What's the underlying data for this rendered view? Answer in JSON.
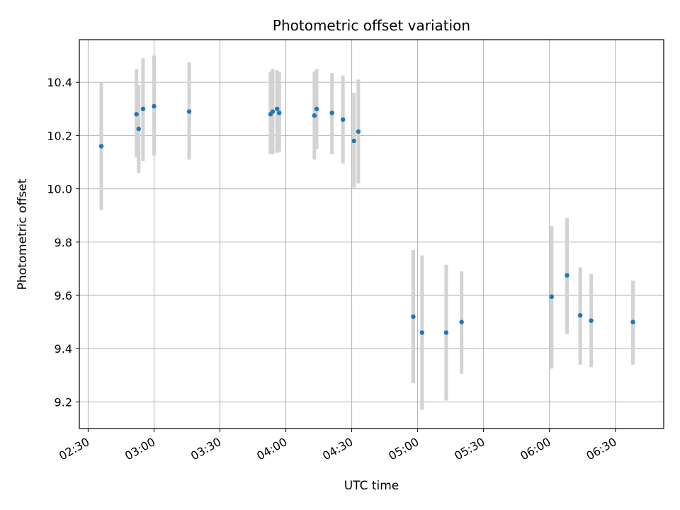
{
  "chart_data": {
    "type": "scatter",
    "title": "Photometric offset variation",
    "xlabel": "UTC time",
    "ylabel": "Photometric offset",
    "x_ticks": [
      "02:30",
      "03:00",
      "03:30",
      "04:00",
      "04:30",
      "05:00",
      "05:30",
      "06:00",
      "06:30"
    ],
    "y_ticks": [
      "9.2",
      "9.4",
      "9.6",
      "9.8",
      "10.0",
      "10.2",
      "10.4"
    ],
    "xlim": [
      "02:26",
      "06:52"
    ],
    "ylim": [
      9.1,
      10.56
    ],
    "grid": true,
    "colors": {
      "point": "#1f77b4",
      "errorbar": "#d3d3d3",
      "grid": "#b0b0b0"
    },
    "points": [
      {
        "time": "02:36",
        "value": 10.16,
        "err_low": 9.92,
        "err_high": 10.4
      },
      {
        "time": "02:52",
        "value": 10.28,
        "err_low": 10.12,
        "err_high": 10.45
      },
      {
        "time": "02:53",
        "value": 10.225,
        "err_low": 10.06,
        "err_high": 10.39
      },
      {
        "time": "02:55",
        "value": 10.3,
        "err_low": 10.105,
        "err_high": 10.49
      },
      {
        "time": "03:00",
        "value": 10.31,
        "err_low": 10.125,
        "err_high": 10.5
      },
      {
        "time": "03:16",
        "value": 10.29,
        "err_low": 10.11,
        "err_high": 10.475
      },
      {
        "time": "03:53",
        "value": 10.28,
        "err_low": 10.13,
        "err_high": 10.44
      },
      {
        "time": "03:54",
        "value": 10.29,
        "err_low": 10.13,
        "err_high": 10.45
      },
      {
        "time": "03:56",
        "value": 10.3,
        "err_low": 10.135,
        "err_high": 10.445
      },
      {
        "time": "03:57",
        "value": 10.285,
        "err_low": 10.14,
        "err_high": 10.44
      },
      {
        "time": "04:13",
        "value": 10.275,
        "err_low": 10.11,
        "err_high": 10.44
      },
      {
        "time": "04:14",
        "value": 10.3,
        "err_low": 10.15,
        "err_high": 10.45
      },
      {
        "time": "04:21",
        "value": 10.285,
        "err_low": 10.13,
        "err_high": 10.435
      },
      {
        "time": "04:26",
        "value": 10.26,
        "err_low": 10.095,
        "err_high": 10.425
      },
      {
        "time": "04:31",
        "value": 10.18,
        "err_low": 10.005,
        "err_high": 10.36
      },
      {
        "time": "04:33",
        "value": 10.215,
        "err_low": 10.02,
        "err_high": 10.41
      },
      {
        "time": "04:58",
        "value": 9.52,
        "err_low": 9.27,
        "err_high": 9.77
      },
      {
        "time": "05:02",
        "value": 9.46,
        "err_low": 9.17,
        "err_high": 9.75
      },
      {
        "time": "05:13",
        "value": 9.46,
        "err_low": 9.205,
        "err_high": 9.715
      },
      {
        "time": "05:20",
        "value": 9.5,
        "err_low": 9.305,
        "err_high": 9.69
      },
      {
        "time": "06:01",
        "value": 9.595,
        "err_low": 9.325,
        "err_high": 9.86
      },
      {
        "time": "06:08",
        "value": 9.675,
        "err_low": 9.455,
        "err_high": 9.89
      },
      {
        "time": "06:14",
        "value": 9.525,
        "err_low": 9.34,
        "err_high": 9.705
      },
      {
        "time": "06:19",
        "value": 9.505,
        "err_low": 9.33,
        "err_high": 9.68
      },
      {
        "time": "06:38",
        "value": 9.5,
        "err_low": 9.34,
        "err_high": 9.655
      }
    ]
  }
}
